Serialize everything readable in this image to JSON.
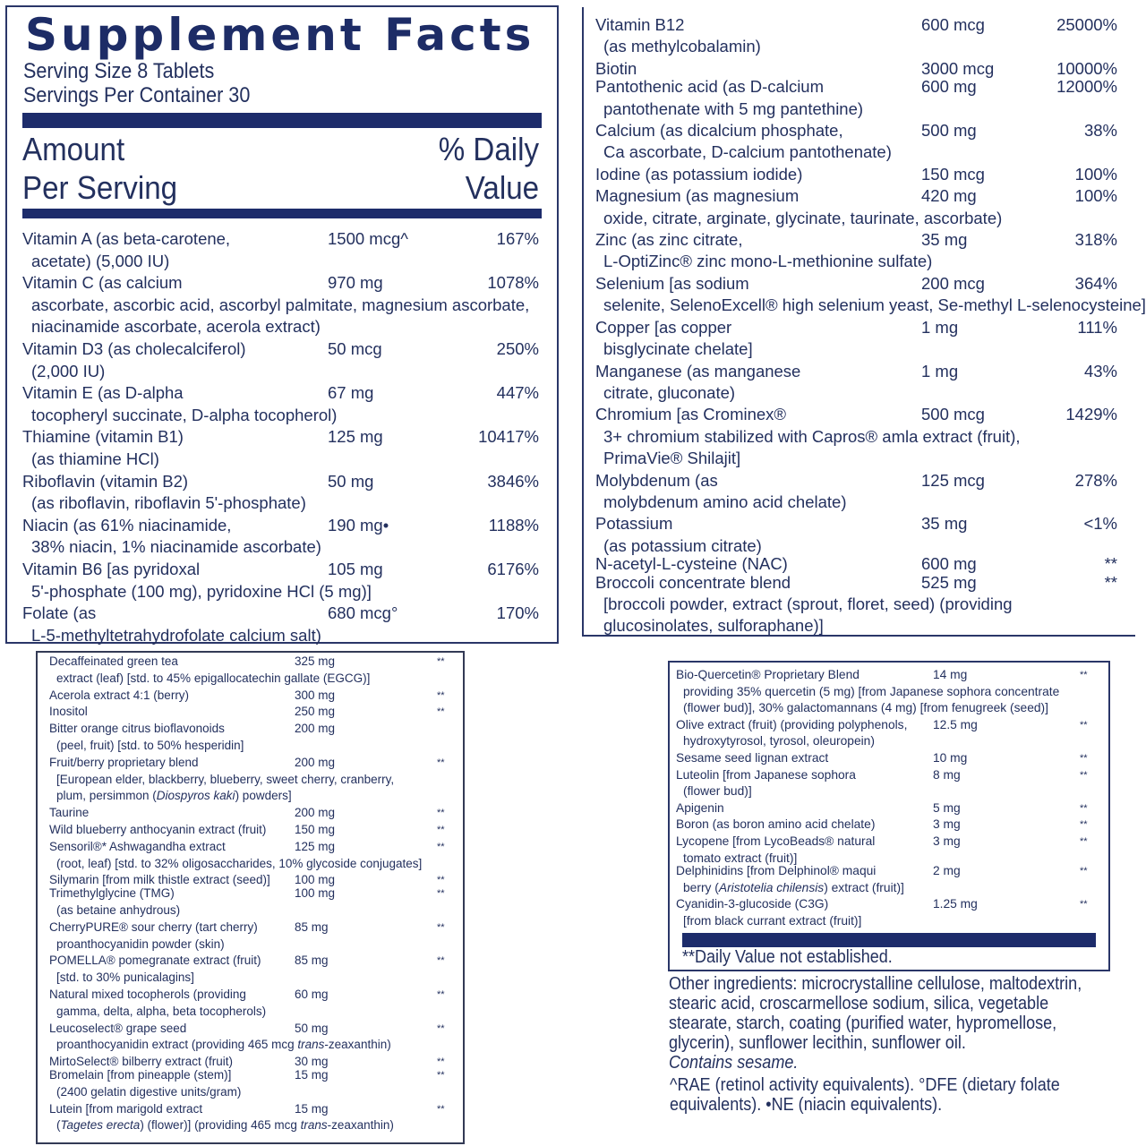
{
  "colors": {
    "text": "#23305e",
    "bar": "#1d2c6b"
  },
  "header": {
    "title": "Supplement Facts",
    "serving_size": "Serving Size 8 Tablets",
    "servings_per_container": "Servings Per Container 30",
    "amount_label": [
      "Amount",
      "Per Serving"
    ],
    "dv_label": [
      "% Daily",
      "Value"
    ]
  },
  "panel1": [
    {
      "lines": [
        "Vitamin A (as beta-carotene,",
        "acetate) (5,000 IU)"
      ],
      "amount": "1500 mcg^",
      "dv": "167%"
    },
    {
      "lines": [
        "Vitamin C (as calcium",
        "ascorbate, ascorbic acid, ascorbyl palmitate, magnesium ascorbate,",
        "niacinamide ascorbate, acerola extract)"
      ],
      "amount": "970 mg",
      "dv": "1078%"
    },
    {
      "lines": [
        "Vitamin D3 (as cholecalciferol)",
        "(2,000 IU)"
      ],
      "amount": "50 mcg",
      "dv": "250%"
    },
    {
      "lines": [
        "Vitamin E (as D-alpha",
        "tocopheryl succinate, D-alpha tocopherol)"
      ],
      "amount": "67 mg",
      "dv": "447%"
    },
    {
      "lines": [
        "Thiamine (vitamin B1)",
        "(as thiamine HCl)"
      ],
      "amount": "125 mg",
      "dv": "10417%"
    },
    {
      "lines": [
        "Riboflavin (vitamin B2)",
        "(as riboflavin, riboflavin 5'-phosphate)"
      ],
      "amount": "50 mg",
      "dv": "3846%"
    },
    {
      "lines": [
        "Niacin (as 61% niacinamide,",
        "38% niacin, 1% niacinamide ascorbate)"
      ],
      "amount": "190 mg•",
      "dv": "1188%"
    },
    {
      "lines": [
        "Vitamin B6 [as pyridoxal",
        "5'-phosphate (100 mg), pyridoxine HCl (5 mg)]"
      ],
      "amount": "105 mg",
      "dv": "6176%"
    },
    {
      "lines": [
        "Folate (as",
        "L-5-methyltetrahydrofolate calcium salt)"
      ],
      "amount": "680 mcg°",
      "dv": "170%"
    }
  ],
  "panel2": [
    {
      "lines": [
        "Vitamin B12",
        "(as methylcobalamin)"
      ],
      "amount": "600 mcg",
      "dv": "25000%"
    },
    {
      "lines": [
        "Biotin"
      ],
      "amount": "3000 mcg",
      "dv": "10000%"
    },
    {
      "lines": [
        "Pantothenic acid (as D-calcium",
        "pantothenate with 5 mg pantethine)"
      ],
      "amount": "600 mg",
      "dv": "12000%",
      "tight": true
    },
    {
      "lines": [
        "Calcium (as dicalcium phosphate,",
        "Ca ascorbate, D-calcium pantothenate)"
      ],
      "amount": "500 mg",
      "dv": "38%"
    },
    {
      "lines": [
        "Iodine (as potassium iodide)"
      ],
      "amount": "150 mcg",
      "dv": "100%"
    },
    {
      "lines": [
        "Magnesium (as magnesium",
        "oxide, citrate, arginate, glycinate, taurinate, ascorbate)"
      ],
      "amount": "420 mg",
      "dv": "100%"
    },
    {
      "lines": [
        "Zinc (as zinc citrate,",
        "L-OptiZinc® zinc mono-L-methionine sulfate)"
      ],
      "amount": "35 mg",
      "dv": "318%"
    },
    {
      "lines": [
        "Selenium [as sodium",
        "selenite, SelenoExcell® high selenium yeast, Se-methyl L-selenocysteine]"
      ],
      "amount": "200 mcg",
      "dv": "364%"
    },
    {
      "lines": [
        "Copper [as copper",
        "bisglycinate chelate]"
      ],
      "amount": "1 mg",
      "dv": "111%"
    },
    {
      "lines": [
        "Manganese (as manganese",
        "citrate, gluconate)"
      ],
      "amount": "1 mg",
      "dv": "43%"
    },
    {
      "lines": [
        "Chromium [as Crominex®",
        "3+ chromium stabilized with Capros® amla extract (fruit),",
        "PrimaVie® Shilajit]"
      ],
      "amount": "500 mcg",
      "dv": "1429%"
    },
    {
      "lines": [
        "Molybdenum (as",
        "molybdenum amino acid chelate)"
      ],
      "amount": "125 mcg",
      "dv": "278%"
    },
    {
      "lines": [
        "Potassium",
        "(as potassium citrate)"
      ],
      "amount": "35 mg",
      "dv": "<1%"
    },
    {
      "lines": [
        "N-acetyl-L-cysteine (NAC)"
      ],
      "amount": "600 mg",
      "dv": "**",
      "tight": true
    },
    {
      "lines": [
        "Broccoli concentrate blend",
        "[broccoli powder, extract (sprout, floret, seed) (providing",
        "glucosinolates, sulforaphane)]"
      ],
      "amount": "525 mg",
      "dv": "**",
      "tight": true
    }
  ],
  "panel3": [
    {
      "lines": [
        "Decaffeinated green tea",
        "extract (leaf) [std. to 45% epigallocatechin gallate (EGCG)]"
      ],
      "amount": "325 mg",
      "dv": "**"
    },
    {
      "lines": [
        "Acerola extract 4:1 (berry)"
      ],
      "amount": "300 mg",
      "dv": "**"
    },
    {
      "lines": [
        "Inositol"
      ],
      "amount": "250 mg",
      "dv": "**"
    },
    {
      "lines": [
        "Bitter orange citrus bioflavonoids",
        "(peel, fruit) [std. to 50% hesperidin]"
      ],
      "amount": "200 mg",
      "dv": ""
    },
    {
      "lines": [
        "Fruit/berry proprietary blend",
        "[European elder, blackberry, blueberry, sweet cherry, cranberry,",
        [
          {
            "t": "plum, persimmon ("
          },
          {
            "t": "Diospyros kaki",
            "i": true
          },
          {
            "t": ") powders]"
          }
        ]
      ],
      "amount": "200 mg",
      "dv": "**"
    },
    {
      "lines": [
        "Taurine"
      ],
      "amount": "200 mg",
      "dv": "**"
    },
    {
      "lines": [
        "Wild blueberry anthocyanin extract (fruit)"
      ],
      "amount": "150 mg",
      "dv": "**"
    },
    {
      "lines": [
        "Sensoril®* Ashwagandha extract",
        "(root, leaf) [std. to 32% oligosaccharides, 10% glycoside conjugates]"
      ],
      "amount": "125 mg",
      "dv": "**"
    },
    {
      "lines": [
        "Silymarin [from milk thistle extract (seed)]"
      ],
      "amount": "100 mg",
      "dv": "**"
    },
    {
      "lines": [
        "Trimethylglycine (TMG)",
        "(as betaine anhydrous)"
      ],
      "amount": "100 mg",
      "dv": "**",
      "tight": true
    },
    {
      "lines": [
        "CherryPURE® sour cherry (tart cherry)",
        "proanthocyanidin powder (skin)"
      ],
      "amount": "85 mg",
      "dv": "**"
    },
    {
      "lines": [
        "POMELLA® pomegranate extract (fruit)",
        "[std. to 30% punicalagins]"
      ],
      "amount": "85 mg",
      "dv": "**"
    },
    {
      "lines": [
        "Natural mixed tocopherols (providing",
        "gamma, delta, alpha, beta tocopherols)"
      ],
      "amount": "60 mg",
      "dv": "**"
    },
    {
      "lines": [
        "Leucoselect® grape seed",
        [
          {
            "t": "proanthocyanidin extract (providing 465 mcg "
          },
          {
            "t": "trans",
            "i": true
          },
          {
            "t": "-zeaxanthin)"
          }
        ]
      ],
      "amount": "50 mg",
      "dv": "**"
    },
    {
      "lines": [
        "MirtoSelect® bilberry extract (fruit)"
      ],
      "amount": "30 mg",
      "dv": "**"
    },
    {
      "lines": [
        "Bromelain [from pineapple (stem)]",
        "(2400 gelatin digestive units/gram)"
      ],
      "amount": "15 mg",
      "dv": "**",
      "tight": true
    },
    {
      "lines": [
        "Lutein [from marigold extract",
        [
          {
            "t": "("
          },
          {
            "t": "Tagetes erecta",
            "i": true
          },
          {
            "t": ") (flower)] (providing 465 mcg "
          },
          {
            "t": "trans",
            "i": true
          },
          {
            "t": "-zeaxanthin)"
          }
        ]
      ],
      "amount": "15 mg",
      "dv": "**"
    }
  ],
  "panel4": [
    {
      "lines": [
        "Bio-Quercetin® Proprietary Blend",
        "providing 35% quercetin (5 mg) [from Japanese sophora concentrate",
        "(flower bud)], 30% galactomannans (4 mg) [from fenugreek (seed)]"
      ],
      "amount": "14 mg",
      "dv": "**"
    },
    {
      "lines": [
        "Olive extract (fruit) (providing polyphenols,",
        "hydroxytyrosol, tyrosol, oleuropein)"
      ],
      "amount": "12.5 mg",
      "dv": "**"
    },
    {
      "lines": [
        "Sesame seed lignan extract"
      ],
      "amount": "10 mg",
      "dv": "**"
    },
    {
      "lines": [
        "Luteolin [from Japanese sophora",
        "(flower bud)]"
      ],
      "amount": "8 mg",
      "dv": "**"
    },
    {
      "lines": [
        "Apigenin"
      ],
      "amount": "5 mg",
      "dv": "**"
    },
    {
      "lines": [
        "Boron (as boron amino acid chelate)"
      ],
      "amount": "3 mg",
      "dv": "**"
    },
    {
      "lines": [
        "Lycopene [from LycoBeads® natural",
        "tomato extract (fruit)]"
      ],
      "amount": "3 mg",
      "dv": "**"
    },
    {
      "lines": [
        "Delphinidins [from Delphinol® maqui",
        [
          {
            "t": "berry ("
          },
          {
            "t": "Aristotelia chilensis",
            "i": true
          },
          {
            "t": ") extract (fruit)]"
          }
        ]
      ],
      "amount": "2 mg",
      "dv": "**",
      "tight": true
    },
    {
      "lines": [
        "Cyanidin-3-glucoside (C3G)",
        "[from black currant extract (fruit)]"
      ],
      "amount": "1.25 mg",
      "dv": "**"
    }
  ],
  "footnote": "**Daily Value not established.",
  "other_ingredients": "Other ingredients: microcrystalline cellulose, maltodextrin, stearic acid, croscarmellose sodium, silica, vegetable stearate, starch, coating (purified water, hypromellose, glycerin), sunflower lecithin, sunflower oil.",
  "contains": "Contains sesame.",
  "notes": "^RAE (retinol activity equivalents). °DFE (dietary folate equivalents). •NE (niacin equivalents)."
}
